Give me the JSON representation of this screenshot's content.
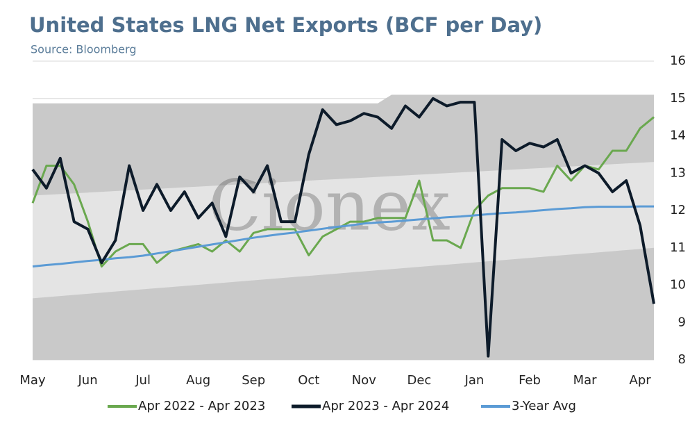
{
  "chart_data": {
    "type": "line",
    "title": "United States LNG Net Exports (BCF per Day)",
    "subtitle": "Source: Bloomberg",
    "watermark": "Cionex",
    "categories": [
      "May",
      null,
      null,
      null,
      "Jun",
      null,
      null,
      null,
      "Jul",
      null,
      null,
      null,
      "Aug",
      null,
      null,
      null,
      "Sep",
      null,
      null,
      null,
      "Oct",
      null,
      null,
      null,
      "Nov",
      null,
      null,
      null,
      "Dec",
      null,
      null,
      null,
      "Jan",
      null,
      null,
      null,
      "Feb",
      null,
      null,
      null,
      "Mar",
      null,
      null,
      null,
      "Apr",
      null
    ],
    "ylim": [
      8,
      16
    ],
    "yticks": [
      8,
      9,
      10,
      11,
      12,
      13,
      14,
      15,
      16
    ],
    "grid": true,
    "bands": [
      {
        "color": "#c9c9c9",
        "upper": [
          14.87,
          14.87,
          14.87,
          14.87,
          14.87,
          14.87,
          14.87,
          14.87,
          14.87,
          14.87,
          14.87,
          14.87,
          14.87,
          14.87,
          14.87,
          14.87,
          14.87,
          14.87,
          14.87,
          14.87,
          14.87,
          14.87,
          14.87,
          14.87,
          14.87,
          14.87,
          15.1,
          15.1,
          15.1,
          15.1,
          15.1,
          15.1,
          15.1,
          15.1,
          15.1,
          15.1,
          15.1,
          15.1,
          15.1,
          15.1,
          15.1,
          15.1,
          15.1,
          15.1,
          15.1,
          15.1
        ]
      },
      {
        "color": "#e4e4e4",
        "lower": [
          9.65,
          9.68,
          9.71,
          9.74,
          9.77,
          9.8,
          9.83,
          9.86,
          9.89,
          9.92,
          9.95,
          9.98,
          10.01,
          10.04,
          10.07,
          10.1,
          10.13,
          10.16,
          10.19,
          10.22,
          10.25,
          10.28,
          10.31,
          10.34,
          10.37,
          10.4,
          10.43,
          10.46,
          10.49,
          10.52,
          10.55,
          10.58,
          10.61,
          10.64,
          10.67,
          10.7,
          10.73,
          10.76,
          10.79,
          10.82,
          10.85,
          10.88,
          10.91,
          10.94,
          10.97,
          11.0
        ],
        "upper": [
          12.4,
          12.42,
          12.44,
          12.46,
          12.48,
          12.5,
          12.52,
          12.54,
          12.56,
          12.58,
          12.6,
          12.62,
          12.64,
          12.66,
          12.68,
          12.7,
          12.72,
          12.74,
          12.76,
          12.78,
          12.8,
          12.82,
          12.84,
          12.86,
          12.88,
          12.9,
          12.92,
          12.94,
          12.96,
          12.98,
          13.0,
          13.02,
          13.04,
          13.06,
          13.08,
          13.1,
          13.12,
          13.14,
          13.16,
          13.18,
          13.2,
          13.22,
          13.24,
          13.26,
          13.28,
          13.3
        ]
      }
    ],
    "series": [
      {
        "name": "Apr 2022 - Apr 2023",
        "color": "#6aa84f",
        "width": 3,
        "values": [
          12.2,
          13.2,
          13.2,
          12.7,
          11.7,
          10.5,
          10.9,
          11.1,
          11.1,
          10.6,
          10.9,
          11.0,
          11.1,
          10.9,
          11.2,
          10.9,
          11.4,
          11.5,
          11.5,
          11.5,
          10.8,
          11.3,
          11.5,
          11.7,
          11.7,
          11.8,
          11.8,
          11.8,
          12.8,
          11.2,
          11.2,
          11.0,
          12.0,
          12.4,
          12.6,
          12.6,
          12.6,
          12.5,
          13.2,
          12.8,
          13.2,
          13.1,
          13.6,
          13.6,
          14.2,
          14.5
        ]
      },
      {
        "name": "Apr 2023 - Apr 2024",
        "color": "#0d1b2a",
        "width": 4,
        "values": [
          13.1,
          12.6,
          13.4,
          11.7,
          11.5,
          10.6,
          11.2,
          13.2,
          12.0,
          12.7,
          12.0,
          12.5,
          11.8,
          12.2,
          11.3,
          12.9,
          12.5,
          13.2,
          11.7,
          11.7,
          13.5,
          14.7,
          14.3,
          14.4,
          14.6,
          14.5,
          14.2,
          14.8,
          14.5,
          15.0,
          14.8,
          14.9,
          14.9,
          8.1,
          13.9,
          13.6,
          13.8,
          13.7,
          13.9,
          13.0,
          13.2,
          13.0,
          12.5,
          12.8,
          11.6,
          9.5
        ]
      },
      {
        "name": "3-Year Avg",
        "color": "#5b9bd5",
        "width": 3,
        "values": [
          10.5,
          10.54,
          10.57,
          10.61,
          10.65,
          10.68,
          10.72,
          10.75,
          10.79,
          10.85,
          10.91,
          10.97,
          11.03,
          11.09,
          11.15,
          11.21,
          11.27,
          11.32,
          11.37,
          11.41,
          11.46,
          11.51,
          11.56,
          11.6,
          11.65,
          11.68,
          11.7,
          11.73,
          11.76,
          11.79,
          11.82,
          11.84,
          11.87,
          11.9,
          11.93,
          11.95,
          11.98,
          12.01,
          12.04,
          12.06,
          12.09,
          12.1,
          12.1,
          12.1,
          12.11,
          12.11
        ]
      }
    ]
  }
}
